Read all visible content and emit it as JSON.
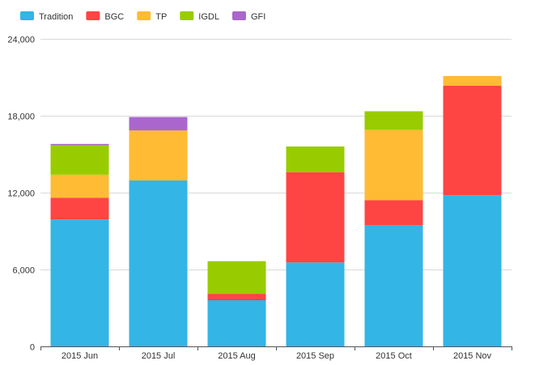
{
  "chart_data": {
    "type": "bar",
    "stacked": true,
    "categories": [
      "2015 Jun",
      "2015 Jul",
      "2015 Aug",
      "2015 Sep",
      "2015 Oct",
      "2015 Nov"
    ],
    "series": [
      {
        "name": "Tradition",
        "color": "#33b5e5",
        "values": [
          9900,
          12950,
          3600,
          6550,
          9450,
          11800
        ]
      },
      {
        "name": "BGC",
        "color": "#ff4444",
        "values": [
          1700,
          0,
          500,
          7050,
          1950,
          8550
        ]
      },
      {
        "name": "TP",
        "color": "#ffbb33",
        "values": [
          1800,
          3900,
          0,
          0,
          5500,
          750
        ]
      },
      {
        "name": "IGDL",
        "color": "#99cc00",
        "values": [
          2300,
          0,
          2550,
          2000,
          1450,
          0
        ]
      },
      {
        "name": "GFI",
        "color": "#aa66cc",
        "values": [
          100,
          1050,
          0,
          0,
          0,
          0
        ]
      }
    ],
    "ylim": [
      0,
      24000
    ],
    "yticks": [
      0,
      6000,
      12000,
      18000,
      24000
    ],
    "ytick_labels": [
      "0",
      "6,000",
      "12,000",
      "18,000",
      "24,000"
    ],
    "grid": true,
    "legend_position": "top-left",
    "title": "",
    "xlabel": "",
    "ylabel": ""
  }
}
